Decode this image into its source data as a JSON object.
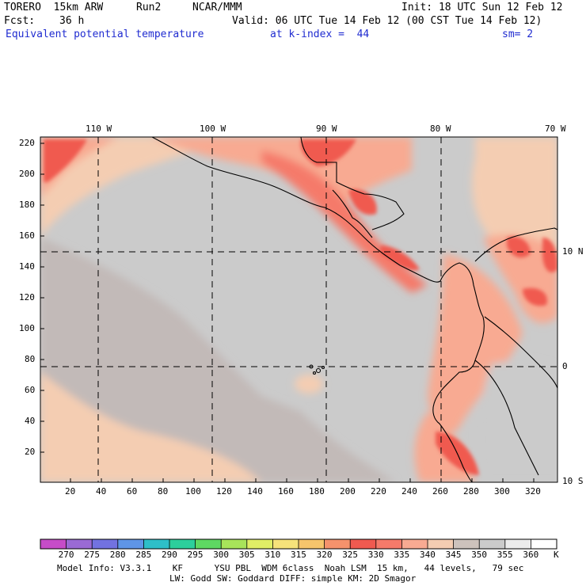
{
  "header": {
    "model": "TORERO  15km ARW",
    "run": "Run2",
    "org": "NCAR/MMM",
    "init": "Init: 18 UTC Sun 12 Feb 12",
    "fcst_label": "Fcst:",
    "fcst_value": "36 h",
    "valid": "Valid: 06 UTC Tue 14 Feb 12 (00 CST Tue 14 Feb 12)",
    "field": "Equivalent potential temperature",
    "level": "at k-index =  44",
    "smoothing": "sm= 2"
  },
  "map": {
    "lon_labels": [
      "110 W",
      "100 W",
      "90 W",
      "80 W",
      "70 W"
    ],
    "lat_labels": [
      "10 N",
      "0",
      "10 S"
    ],
    "y_ticks": [
      "220",
      "200",
      "180",
      "160",
      "140",
      "120",
      "100",
      "80",
      "60",
      "40",
      "20"
    ],
    "x_ticks": [
      "20",
      "40",
      "60",
      "80",
      "100",
      "120",
      "140",
      "160",
      "180",
      "200",
      "220",
      "240",
      "260",
      "280",
      "300",
      "320"
    ]
  },
  "colorbar": {
    "labels": [
      "270",
      "275",
      "280",
      "285",
      "290",
      "295",
      "300",
      "305",
      "310",
      "315",
      "320",
      "325",
      "330",
      "335",
      "340",
      "345",
      "350",
      "355",
      "360"
    ],
    "unit": "K",
    "colors": [
      "#c64cc8",
      "#9a6ad4",
      "#7272e0",
      "#5f95e6",
      "#2ebfc8",
      "#2ccf9c",
      "#5ed862",
      "#a8e45a",
      "#e0ee66",
      "#f6e27a",
      "#f6c56c",
      "#f5926c",
      "#f05a50",
      "#f57a6a",
      "#f8aa92",
      "#f4cdb2",
      "#cdc2bc",
      "#cbcbcb",
      "#ececec",
      "#ffffff"
    ]
  },
  "footer": {
    "line1": "Model Info: V3.3.1    KF      YSU PBL  WDM 6class  Noah LSM  15 km,   44 levels,   79 sec",
    "line2": "LW: Godd SW: Goddard DIFF: simple KM: 2D Smagor"
  }
}
